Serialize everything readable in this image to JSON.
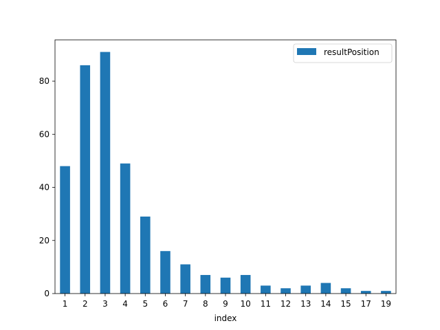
{
  "chart_data": {
    "type": "bar",
    "title": "",
    "xlabel": "index",
    "ylabel": "",
    "categories": [
      "1",
      "2",
      "3",
      "4",
      "5",
      "6",
      "7",
      "8",
      "9",
      "10",
      "11",
      "12",
      "13",
      "14",
      "15",
      "17",
      "19"
    ],
    "series": [
      {
        "name": "resultPosition",
        "color": "#1f77b4",
        "values": [
          48,
          86,
          91,
          49,
          29,
          16,
          11,
          7,
          6,
          7,
          3,
          2,
          3,
          4,
          2,
          1,
          1
        ]
      }
    ],
    "ylim": [
      0,
      95.55
    ],
    "yticks": [
      0,
      20,
      40,
      60,
      80
    ],
    "grid": false,
    "legend": "top-right"
  }
}
